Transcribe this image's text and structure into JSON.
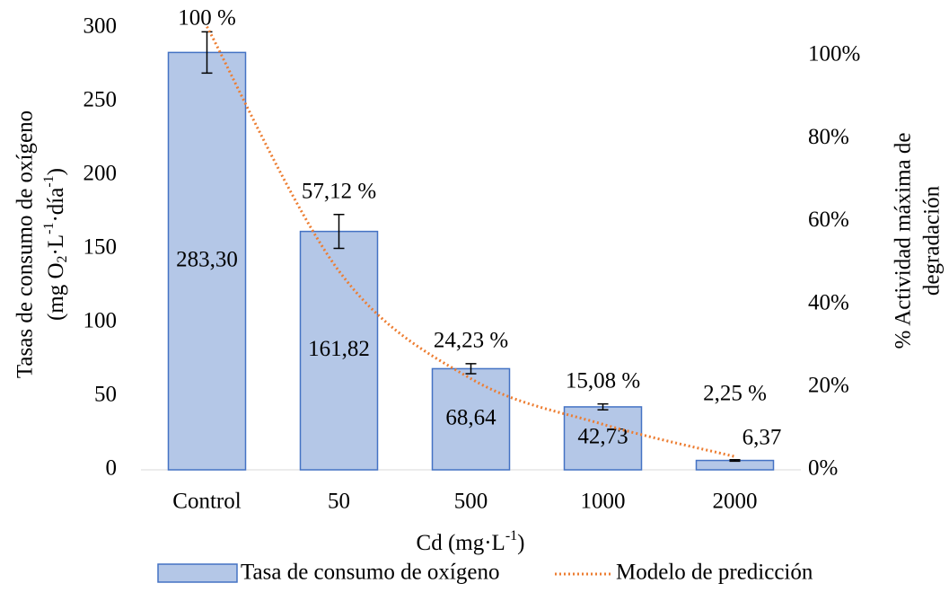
{
  "chart_data": {
    "type": "bar",
    "categories": [
      "Control",
      "50",
      "500",
      "1000",
      "2000"
    ],
    "series": [
      {
        "name": "Tasa de consumo de oxígeno",
        "color": "#b4c7e7",
        "edge_color": "#4472c4",
        "values": [
          283.3,
          161.82,
          68.64,
          42.73,
          6.37
        ],
        "value_labels": [
          "283,30",
          "161,82",
          "68,64",
          "42,73",
          "6,37"
        ],
        "errors": [
          14,
          11.5,
          3.4,
          2,
          0.5
        ]
      },
      {
        "name": "Modelo de predicción",
        "type": "line",
        "axis": "y2",
        "color": "#ed7d31",
        "dotted": true,
        "values": [
          107,
          48,
          22,
          11,
          3.2
        ]
      }
    ],
    "annotations": [
      "100 %",
      "57,12 %",
      "24,23 %",
      "15,08 %",
      "2,25 %"
    ],
    "xlabel": [
      "Cd (mg·L",
      "-1",
      ")"
    ],
    "ylabel": {
      "line1": "Tasas de consumo de oxígeno",
      "line2": [
        "(mg O",
        "2",
        "·L",
        "-1",
        "·día",
        "-1",
        ")"
      ]
    },
    "y2label": [
      "% Actividad máxima de",
      "degradación"
    ],
    "ylim": [
      0,
      300
    ],
    "yticks": [
      0,
      50,
      100,
      150,
      200,
      250,
      300
    ],
    "y2lim": [
      0,
      106.7
    ],
    "y2ticks": [
      {
        "value": 0,
        "label": "0%"
      },
      {
        "value": 20,
        "label": "20%"
      },
      {
        "value": 40,
        "label": "40%"
      },
      {
        "value": 60,
        "label": "60%"
      },
      {
        "value": 80,
        "label": "80%"
      },
      {
        "value": 100,
        "label": "100%"
      }
    ],
    "legend": "bottom"
  }
}
